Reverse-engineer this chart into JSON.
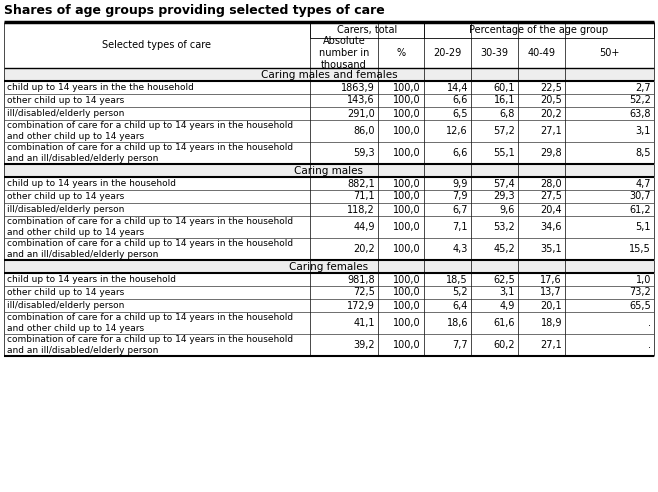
{
  "title": "Shares of age groups providing selected types of care",
  "span_header_1": "Carers, total",
  "span_header_2": "Percentage of the age group",
  "col_label": "Selected types of care",
  "sub_headers": [
    "Absolute\nnumber in\nthousand",
    "%",
    "20-29",
    "30-39",
    "40-49",
    "50+"
  ],
  "sections": [
    {
      "name": "Caring males and females",
      "rows": [
        [
          "child up to 14 years in the the household",
          "1863,9",
          "100,0",
          "14,4",
          "60,1",
          "22,5",
          "2,7"
        ],
        [
          "other child up to 14 years",
          "143,6",
          "100,0",
          "6,6",
          "16,1",
          "20,5",
          "52,2"
        ],
        [
          "ill/disabled/elderly person",
          "291,0",
          "100,0",
          "6,5",
          "6,8",
          "20,2",
          "63,8"
        ],
        [
          "combination of care for a child up to 14 years in the household\nand other child up to 14 years",
          "86,0",
          "100,0",
          "12,6",
          "57,2",
          "27,1",
          "3,1"
        ],
        [
          "combination of care for a child up to 14 years in the household\nand an ill/disabled/elderly person",
          "59,3",
          "100,0",
          "6,6",
          "55,1",
          "29,8",
          "8,5"
        ]
      ]
    },
    {
      "name": "Caring males",
      "rows": [
        [
          "child up to 14 years in the household",
          "882,1",
          "100,0",
          "9,9",
          "57,4",
          "28,0",
          "4,7"
        ],
        [
          "other child up to 14 years",
          "71,1",
          "100,0",
          "7,9",
          "29,3",
          "27,5",
          "30,7"
        ],
        [
          "ill/disabled/elderly person",
          "118,2",
          "100,0",
          "6,7",
          "9,6",
          "20,4",
          "61,2"
        ],
        [
          "combination of care for a child up to 14 years in the household\nand other child up to 14 years",
          "44,9",
          "100,0",
          "7,1",
          "53,2",
          "34,6",
          "5,1"
        ],
        [
          "combination of care for a child up to 14 years in the household\nand an ill/disabled/elderly person",
          "20,2",
          "100,0",
          "4,3",
          "45,2",
          "35,1",
          "15,5"
        ]
      ]
    },
    {
      "name": "Caring females",
      "rows": [
        [
          "child up to 14 years in the household",
          "981,8",
          "100,0",
          "18,5",
          "62,5",
          "17,6",
          "1,0"
        ],
        [
          "other child up to 14 years",
          "72,5",
          "100,0",
          "5,2",
          "3,1",
          "13,7",
          "73,2"
        ],
        [
          "ill/disabled/elderly person",
          "172,9",
          "100,0",
          "6,4",
          "4,9",
          "20,1",
          "65,5"
        ],
        [
          "combination of care for a child up to 14 years in the household\nand other child up to 14 years",
          "41,1",
          "100,0",
          "18,6",
          "61,6",
          "18,9",
          "."
        ],
        [
          "combination of care for a child up to 14 years in the household\nand an ill/disabled/elderly person",
          "39,2",
          "100,0",
          "7,7",
          "60,2",
          "27,1",
          "."
        ]
      ]
    }
  ],
  "title_fontsize": 9,
  "header_fontsize": 7,
  "data_fontsize": 7,
  "section_fontsize": 7.5,
  "bg_color": "white",
  "section_bg": "#f0f0f0",
  "border_color": "black"
}
